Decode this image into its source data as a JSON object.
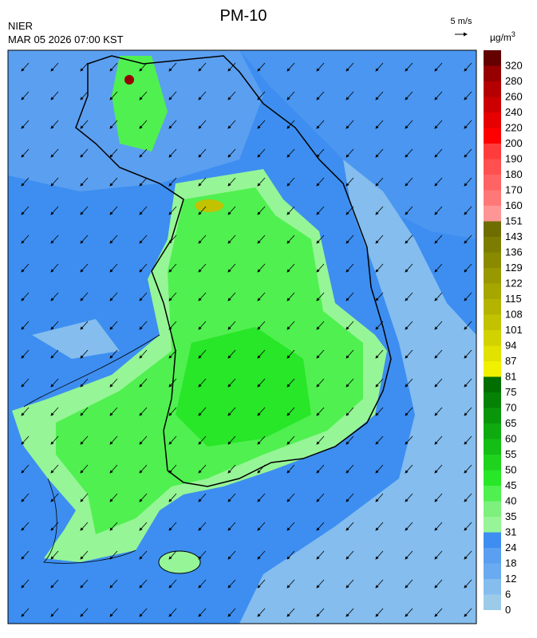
{
  "header": {
    "title": "PM-10",
    "agency": "NIER",
    "datetime": "MAR 05 2026 07:00 KST"
  },
  "wind_scale": {
    "label": "5 m/s"
  },
  "colorbar": {
    "unit": "µg/m",
    "unit_exponent": "3",
    "levels": [
      {
        "value": 0,
        "color": "#9ccbea"
      },
      {
        "value": 6,
        "color": "#84bdee"
      },
      {
        "value": 12,
        "color": "#6aaaf0"
      },
      {
        "value": 18,
        "color": "#5b9ff0"
      },
      {
        "value": 24,
        "color": "#3d8ef0"
      },
      {
        "value": 31,
        "color": "#96f596"
      },
      {
        "value": 35,
        "color": "#7df07d"
      },
      {
        "value": 40,
        "color": "#50f050"
      },
      {
        "value": 45,
        "color": "#28e628"
      },
      {
        "value": 50,
        "color": "#1ed21e"
      },
      {
        "value": 55,
        "color": "#14be14"
      },
      {
        "value": 60,
        "color": "#0faa0f"
      },
      {
        "value": 65,
        "color": "#0a960a"
      },
      {
        "value": 70,
        "color": "#058205"
      },
      {
        "value": 75,
        "color": "#006e00"
      },
      {
        "value": 81,
        "color": "#f0f000"
      },
      {
        "value": 87,
        "color": "#e2e200"
      },
      {
        "value": 94,
        "color": "#d2d200"
      },
      {
        "value": 101,
        "color": "#c2c200"
      },
      {
        "value": 108,
        "color": "#b4b400"
      },
      {
        "value": 115,
        "color": "#a6a600"
      },
      {
        "value": 122,
        "color": "#989800"
      },
      {
        "value": 129,
        "color": "#8a8a00"
      },
      {
        "value": 136,
        "color": "#7c7c00"
      },
      {
        "value": 143,
        "color": "#6e6e00"
      },
      {
        "value": 151,
        "color": "#ff9696"
      },
      {
        "value": 160,
        "color": "#ff7878"
      },
      {
        "value": 170,
        "color": "#ff6464"
      },
      {
        "value": 180,
        "color": "#ff5050"
      },
      {
        "value": 190,
        "color": "#ff3c3c"
      },
      {
        "value": 200,
        "color": "#ff0000"
      },
      {
        "value": 220,
        "color": "#e60000"
      },
      {
        "value": 240,
        "color": "#cc0000"
      },
      {
        "value": 260,
        "color": "#b40000"
      },
      {
        "value": 280,
        "color": "#960000"
      },
      {
        "value": 320,
        "color": "#640000"
      }
    ]
  }
}
